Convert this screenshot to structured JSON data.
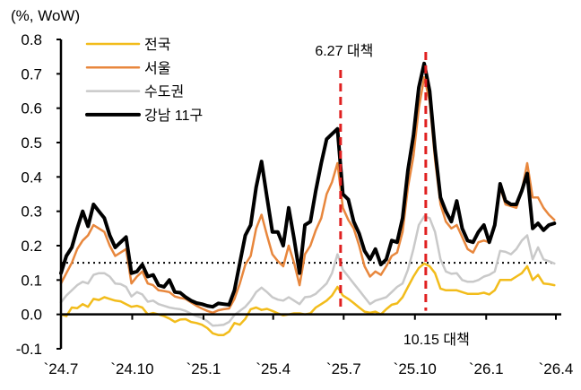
{
  "chart_data": {
    "type": "line",
    "unit_label": "(%, WoW)",
    "ylim": [
      -0.1,
      0.8
    ],
    "yticks": [
      -0.1,
      0.0,
      0.1,
      0.2,
      0.3,
      0.4,
      0.5,
      0.6,
      0.7,
      0.8
    ],
    "ytick_labels": [
      "-0.1",
      "0.0",
      "0.1",
      "0.2",
      "0.3",
      "0.4",
      "0.5",
      "0.6",
      "0.7",
      "0.8"
    ],
    "xlim": [
      "2024-07-01",
      "2026-04-01"
    ],
    "xticks": [
      {
        "date": "2024-07-01",
        "label": "`24.7"
      },
      {
        "date": "2024-10-01",
        "label": "`24.10"
      },
      {
        "date": "2025-01-01",
        "label": "`25.1"
      },
      {
        "date": "2025-04-01",
        "label": "`25.4"
      },
      {
        "date": "2025-07-01",
        "label": "`25.7"
      },
      {
        "date": "2025-10-01",
        "label": "`25.10"
      },
      {
        "date": "2026-01-01",
        "label": "`26.1"
      },
      {
        "date": "2026-04-01",
        "label": "`26.4"
      }
    ],
    "grid": false,
    "legend_position": "top-left",
    "x": [
      "2024-07-01",
      "2024-07-08",
      "2024-07-15",
      "2024-07-22",
      "2024-07-29",
      "2024-08-05",
      "2024-08-12",
      "2024-08-19",
      "2024-08-26",
      "2024-09-02",
      "2024-09-09",
      "2024-09-16",
      "2024-09-23",
      "2024-09-30",
      "2024-10-07",
      "2024-10-14",
      "2024-10-21",
      "2024-10-28",
      "2024-11-04",
      "2024-11-11",
      "2024-11-18",
      "2024-11-25",
      "2024-12-02",
      "2024-12-09",
      "2024-12-16",
      "2024-12-23",
      "2024-12-30",
      "2025-01-06",
      "2025-01-13",
      "2025-01-20",
      "2025-01-27",
      "2025-02-03",
      "2025-02-10",
      "2025-02-17",
      "2025-02-24",
      "2025-03-03",
      "2025-03-10",
      "2025-03-17",
      "2025-03-24",
      "2025-03-31",
      "2025-04-07",
      "2025-04-14",
      "2025-04-21",
      "2025-04-28",
      "2025-05-05",
      "2025-05-12",
      "2025-05-19",
      "2025-05-26",
      "2025-06-02",
      "2025-06-09",
      "2025-06-16",
      "2025-06-23",
      "2025-06-30",
      "2025-07-07",
      "2025-07-14",
      "2025-07-21",
      "2025-07-28",
      "2025-08-04",
      "2025-08-11",
      "2025-08-18",
      "2025-08-25",
      "2025-09-01",
      "2025-09-08",
      "2025-09-15",
      "2025-09-22",
      "2025-09-29",
      "2025-10-06",
      "2025-10-13",
      "2025-10-20",
      "2025-10-27",
      "2025-11-03",
      "2025-11-10",
      "2025-11-17",
      "2025-11-24",
      "2025-12-01",
      "2025-12-08",
      "2025-12-15",
      "2025-12-22",
      "2025-12-29",
      "2026-01-05",
      "2026-01-12",
      "2026-01-19",
      "2026-01-26",
      "2026-02-02",
      "2026-02-09",
      "2026-02-16",
      "2026-02-23",
      "2026-03-02",
      "2026-03-09",
      "2026-03-16",
      "2026-03-23",
      "2026-03-30"
    ],
    "series": [
      {
        "name": "전국",
        "color": "#F2BC1B",
        "width": 2.5,
        "values": [
          0,
          -0.005,
          0.02,
          0.018,
          0.03,
          0.022,
          0.045,
          0.042,
          0.05,
          0.045,
          0.04,
          0.038,
          0.03,
          0.022,
          0.025,
          0.02,
          0,
          0.004,
          0,
          -0.005,
          -0.012,
          -0.022,
          -0.015,
          -0.014,
          -0.022,
          -0.025,
          -0.03,
          -0.04,
          -0.055,
          -0.06,
          -0.06,
          -0.05,
          -0.025,
          -0.03,
          -0.013,
          0.015,
          0.02,
          0.013,
          0.016,
          0.01,
          0.003,
          -0.003,
          0,
          0.003,
          0.003,
          0,
          0.003,
          0.02,
          0.03,
          0.04,
          0.055,
          0.08,
          0.055,
          0.045,
          0.033,
          0.02,
          0.008,
          0.005,
          0.008,
          0,
          0.015,
          0.028,
          0.032,
          0.05,
          0.08,
          0.11,
          0.135,
          0.148,
          0.14,
          0.12,
          0.075,
          0.07,
          0.07,
          0.07,
          0.065,
          0.06,
          0.06,
          0.06,
          0.063,
          0.058,
          0.07,
          0.1,
          0.1,
          0.1,
          0.11,
          0.12,
          0.14,
          0.1,
          0.115,
          0.09,
          0.088,
          0.085
        ]
      },
      {
        "name": "서울",
        "color": "#E8873D",
        "width": 2.5,
        "values": [
          0.09,
          0.12,
          0.15,
          0.19,
          0.215,
          0.23,
          0.26,
          0.25,
          0.24,
          0.2,
          0.17,
          0.18,
          0.19,
          0.09,
          0.11,
          0.125,
          0.09,
          0.085,
          0.07,
          0.068,
          0.065,
          0.052,
          0.048,
          0.045,
          0.035,
          0.025,
          0.017,
          0.01,
          0.005,
          0.012,
          0.015,
          0.017,
          0.045,
          0.09,
          0.145,
          0.17,
          0.25,
          0.29,
          0.23,
          0.175,
          0.155,
          0.14,
          0.2,
          0.15,
          0.085,
          0.175,
          0.2,
          0.245,
          0.28,
          0.35,
          0.385,
          0.44,
          0.31,
          0.275,
          0.25,
          0.2,
          0.14,
          0.11,
          0.125,
          0.115,
          0.14,
          0.17,
          0.18,
          0.24,
          0.37,
          0.46,
          0.6,
          0.69,
          0.62,
          0.45,
          0.32,
          0.27,
          0.25,
          0.26,
          0.225,
          0.19,
          0.18,
          0.21,
          0.215,
          0.21,
          0.26,
          0.37,
          0.32,
          0.315,
          0.31,
          0.36,
          0.44,
          0.34,
          0.34,
          0.31,
          0.29,
          0.275
        ]
      },
      {
        "name": "수도권",
        "color": "#C9C9C9",
        "width": 2.5,
        "values": [
          0.035,
          0.055,
          0.07,
          0.085,
          0.095,
          0.09,
          0.115,
          0.12,
          0.12,
          0.11,
          0.09,
          0.088,
          0.08,
          0.052,
          0.065,
          0.058,
          0.037,
          0.04,
          0.03,
          0.025,
          0.02,
          0.017,
          0.015,
          0.01,
          0.002,
          -0.005,
          -0.01,
          -0.02,
          -0.033,
          -0.032,
          -0.03,
          -0.022,
          -0.002,
          0.01,
          0.022,
          0.04,
          0.065,
          0.078,
          0.065,
          0.05,
          0.043,
          0.04,
          0.05,
          0.04,
          0.03,
          0.05,
          0.052,
          0.06,
          0.075,
          0.09,
          0.12,
          0.175,
          0.13,
          0.11,
          0.09,
          0.07,
          0.05,
          0.03,
          0.04,
          0.045,
          0.05,
          0.065,
          0.08,
          0.09,
          0.13,
          0.19,
          0.26,
          0.285,
          0.28,
          0.24,
          0.16,
          0.125,
          0.118,
          0.12,
          0.1,
          0.095,
          0.095,
          0.1,
          0.11,
          0.115,
          0.125,
          0.185,
          0.182,
          0.175,
          0.19,
          0.215,
          0.23,
          0.16,
          0.195,
          0.16,
          0.155,
          0.148
        ]
      },
      {
        "name": "강남 11구",
        "color": "#000000",
        "width": 4,
        "values": [
          0.12,
          0.17,
          0.195,
          0.25,
          0.3,
          0.256,
          0.32,
          0.3,
          0.28,
          0.23,
          0.195,
          0.21,
          0.225,
          0.12,
          0.125,
          0.145,
          0.11,
          0.115,
          0.085,
          0.08,
          0.1,
          0.065,
          0.063,
          0.05,
          0.04,
          0.033,
          0.03,
          0.025,
          0.022,
          0.032,
          0.03,
          0.028,
          0.07,
          0.15,
          0.23,
          0.26,
          0.37,
          0.445,
          0.34,
          0.24,
          0.24,
          0.2,
          0.31,
          0.22,
          0.12,
          0.26,
          0.27,
          0.36,
          0.44,
          0.51,
          0.525,
          0.54,
          0.35,
          0.334,
          0.27,
          0.235,
          0.185,
          0.16,
          0.19,
          0.145,
          0.16,
          0.215,
          0.21,
          0.28,
          0.42,
          0.52,
          0.66,
          0.73,
          0.65,
          0.48,
          0.34,
          0.3,
          0.27,
          0.33,
          0.25,
          0.215,
          0.21,
          0.24,
          0.26,
          0.21,
          0.26,
          0.38,
          0.33,
          0.32,
          0.32,
          0.36,
          0.41,
          0.25,
          0.265,
          0.245,
          0.26,
          0.265
        ]
      }
    ],
    "reference_line": {
      "value": 0.15,
      "style": "dotted",
      "color": "#000000"
    },
    "annotations": [
      {
        "date": "2025-06-27",
        "label": "6.27 대책",
        "color": "#E02020",
        "label_position": "top"
      },
      {
        "date": "2025-10-15",
        "label": "10.15 대책",
        "color": "#E02020",
        "label_position": "bottom"
      }
    ]
  }
}
